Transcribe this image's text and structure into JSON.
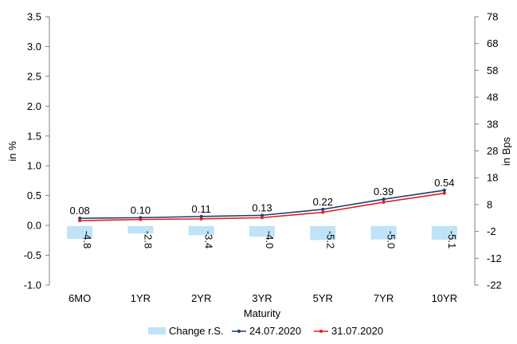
{
  "chart_data": {
    "type": "bar+line",
    "categories": [
      "6MO",
      "1YR",
      "2YR",
      "3YR",
      "5YR",
      "7YR",
      "10YR"
    ],
    "xlabel": "Maturity",
    "ylabel_left": "in %",
    "ylabel_right": "in Bps",
    "ylim_left": [
      -1.0,
      3.5
    ],
    "yticks_left": [
      -1.0,
      -0.5,
      0.0,
      0.5,
      1.0,
      1.5,
      2.0,
      2.5,
      3.0,
      3.5
    ],
    "yticks_left_labels": [
      "-1.0",
      "-0.5",
      "0.0",
      "0.5",
      "1.0",
      "1.5",
      "2.0",
      "2.5",
      "3.0",
      "3.5"
    ],
    "ylim_right": [
      -22,
      78
    ],
    "yticks_right": [
      -22,
      -12,
      -2,
      8,
      18,
      28,
      38,
      48,
      58,
      68,
      78
    ],
    "yticks_right_labels": [
      "-22",
      "-12",
      "-2",
      "8",
      "18",
      "28",
      "38",
      "48",
      "58",
      "68",
      "78"
    ],
    "bar_series": {
      "name": "Change r.S.",
      "axis": "right",
      "color": "#bfe3f7",
      "values": [
        -4.8,
        -2.8,
        -3.4,
        -4.0,
        -5.2,
        -5.0,
        -5.1
      ],
      "labels": [
        "-4.8",
        "-2.8",
        "-3.4",
        "-4.0",
        "-5.2",
        "-5.0",
        "-5.1"
      ]
    },
    "line_series": [
      {
        "name": "24.07.2020",
        "axis": "left",
        "color": "#1f3c6e",
        "values": [
          0.12,
          0.13,
          0.15,
          0.17,
          0.27,
          0.44,
          0.59
        ]
      },
      {
        "name": "31.07.2020",
        "axis": "left",
        "color": "#e02020",
        "values": [
          0.08,
          0.1,
          0.11,
          0.13,
          0.22,
          0.39,
          0.54
        ],
        "labels": [
          "0.08",
          "0.10",
          "0.11",
          "0.13",
          "0.22",
          "0.39",
          "0.54"
        ]
      }
    ],
    "grid": false,
    "legend": "bottom"
  }
}
